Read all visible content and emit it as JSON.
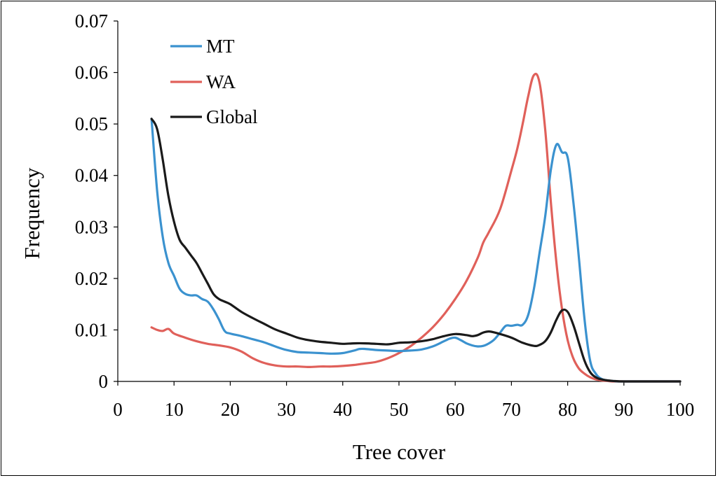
{
  "chart_data": {
    "type": "line",
    "title": "",
    "xlabel": "Tree cover",
    "ylabel": "Frequency",
    "xlim": [
      0,
      100
    ],
    "ylim": [
      0,
      0.07
    ],
    "xticks": [
      0,
      10,
      20,
      30,
      40,
      50,
      60,
      70,
      80,
      90,
      100
    ],
    "yticks": [
      "0",
      "0.01",
      "0.02",
      "0.03",
      "0.04",
      "0.05",
      "0.06",
      "0.07"
    ],
    "legend_position": "top-left",
    "grid": false,
    "series": [
      {
        "name": "MT",
        "color": "#3b92cf",
        "x": [
          6,
          7,
          8,
          9,
          10,
          11,
          12,
          13,
          14,
          15,
          16,
          17,
          18,
          19,
          20,
          22,
          24,
          26,
          28,
          30,
          32,
          34,
          36,
          38,
          40,
          42,
          43,
          44,
          46,
          48,
          50,
          52,
          54,
          56,
          58,
          59,
          60,
          61,
          62,
          63,
          64,
          65,
          66,
          67,
          68,
          69,
          70,
          71,
          72,
          73,
          74,
          75,
          76,
          77,
          78,
          79,
          80,
          81,
          82,
          83,
          84,
          85,
          86,
          87,
          88,
          89,
          90,
          95,
          100
        ],
        "y": [
          0.051,
          0.037,
          0.028,
          0.023,
          0.0205,
          0.018,
          0.017,
          0.0167,
          0.0167,
          0.016,
          0.0155,
          0.014,
          0.012,
          0.0098,
          0.0093,
          0.0088,
          0.0082,
          0.0076,
          0.0068,
          0.0061,
          0.0057,
          0.0056,
          0.0055,
          0.0054,
          0.0055,
          0.006,
          0.0063,
          0.0063,
          0.0061,
          0.006,
          0.0059,
          0.006,
          0.0062,
          0.0068,
          0.0078,
          0.0083,
          0.0085,
          0.008,
          0.0074,
          0.007,
          0.0068,
          0.0069,
          0.0074,
          0.0082,
          0.0095,
          0.0108,
          0.0108,
          0.011,
          0.011,
          0.013,
          0.018,
          0.025,
          0.032,
          0.041,
          0.046,
          0.0445,
          0.0435,
          0.035,
          0.024,
          0.012,
          0.004,
          0.0015,
          0.0005,
          0.0002,
          0.0001,
          0,
          0,
          0,
          0
        ]
      },
      {
        "name": "WA",
        "color": "#e0605a",
        "x": [
          6,
          7,
          8,
          9,
          10,
          12,
          14,
          16,
          18,
          20,
          22,
          24,
          26,
          28,
          30,
          32,
          34,
          36,
          38,
          40,
          42,
          44,
          46,
          48,
          50,
          52,
          54,
          56,
          58,
          60,
          62,
          64,
          65,
          66,
          68,
          70,
          71,
          72,
          73,
          74,
          75,
          76,
          77,
          78,
          79,
          80,
          81,
          82,
          83,
          84,
          85,
          86,
          87,
          88,
          89,
          90,
          95,
          100
        ],
        "y": [
          0.0105,
          0.01,
          0.0098,
          0.0102,
          0.0093,
          0.0085,
          0.0078,
          0.0073,
          0.007,
          0.0066,
          0.0058,
          0.0045,
          0.0036,
          0.0031,
          0.0029,
          0.0029,
          0.0028,
          0.0029,
          0.0029,
          0.003,
          0.0032,
          0.0035,
          0.0038,
          0.0045,
          0.0055,
          0.0068,
          0.0085,
          0.0105,
          0.013,
          0.016,
          0.0195,
          0.024,
          0.027,
          0.029,
          0.0335,
          0.041,
          0.045,
          0.05,
          0.0555,
          0.0595,
          0.058,
          0.049,
          0.035,
          0.023,
          0.014,
          0.008,
          0.0045,
          0.0025,
          0.0015,
          0.0008,
          0.0004,
          0.0002,
          0.0001,
          0,
          0,
          0,
          0,
          0
        ]
      },
      {
        "name": "Global",
        "color": "#1a1a1a",
        "x": [
          6,
          7,
          8,
          9,
          10,
          11,
          12,
          13,
          14,
          15,
          16,
          17,
          18,
          19,
          20,
          22,
          24,
          26,
          28,
          30,
          32,
          34,
          36,
          38,
          40,
          42,
          44,
          46,
          48,
          50,
          52,
          54,
          56,
          58,
          60,
          62,
          63,
          64,
          65,
          66,
          67,
          68,
          70,
          72,
          74,
          75,
          76,
          77,
          78,
          79,
          80,
          81,
          82,
          83,
          84,
          85,
          86,
          87,
          88,
          90,
          95,
          100
        ],
        "y": [
          0.051,
          0.049,
          0.043,
          0.036,
          0.031,
          0.0275,
          0.026,
          0.0245,
          0.023,
          0.021,
          0.019,
          0.017,
          0.016,
          0.0155,
          0.015,
          0.0135,
          0.0123,
          0.0112,
          0.0101,
          0.0093,
          0.0085,
          0.008,
          0.0077,
          0.0075,
          0.0073,
          0.0074,
          0.0074,
          0.0073,
          0.0072,
          0.0075,
          0.0076,
          0.0078,
          0.0082,
          0.0088,
          0.0092,
          0.009,
          0.0088,
          0.009,
          0.0095,
          0.0097,
          0.0095,
          0.0092,
          0.0085,
          0.0075,
          0.0069,
          0.0071,
          0.0078,
          0.0095,
          0.012,
          0.0138,
          0.0135,
          0.011,
          0.0075,
          0.004,
          0.0018,
          0.0008,
          0.0004,
          0.0002,
          0.0001,
          0,
          0,
          0
        ]
      }
    ]
  }
}
